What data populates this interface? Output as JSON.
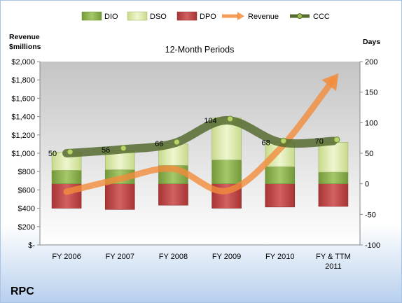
{
  "company": "RPC",
  "chart_data": {
    "type": "bar",
    "title": "12-Month Periods",
    "categories": [
      "FY 2006",
      "FY 2007",
      "FY 2008",
      "FY 2009",
      "FY 2010",
      "FY & TTM 2011"
    ],
    "y_left": {
      "label": [
        "Revenue",
        "$millions"
      ],
      "ticks": [
        "$-",
        "$200",
        "$400",
        "$600",
        "$800",
        "$1,000",
        "$1,200",
        "$1,400",
        "$1,600",
        "$1,800",
        "$2,000"
      ],
      "ylim": [
        0,
        2000
      ]
    },
    "y_right": {
      "label": "Days",
      "ticks": [
        "-100",
        "-50",
        "0",
        "50",
        "100",
        "150",
        "200"
      ],
      "ylim": [
        -100,
        200
      ]
    },
    "stacked_days": {
      "DPO": [
        -40,
        -42,
        -35,
        -40,
        -38,
        -37
      ],
      "DIO": [
        22,
        23,
        30,
        39,
        28,
        19
      ],
      "DSO": [
        30,
        31,
        35,
        69,
        40,
        49
      ]
    },
    "series": [
      {
        "name": "Revenue",
        "axis": "left",
        "values": [
          580,
          720,
          830,
          590,
          1050,
          1800
        ]
      },
      {
        "name": "CCC",
        "axis": "right",
        "values": [
          50,
          56,
          66,
          104,
          68,
          70
        ]
      }
    ],
    "data_labels": [
      "50",
      "56",
      "66",
      "104",
      "68",
      "70"
    ],
    "legend": [
      "DIO",
      "DSO",
      "DPO",
      "Revenue",
      "CCC"
    ],
    "legend_position": "top",
    "colors": {
      "DIO": "#8db24f",
      "DSO": "#d7e6a9",
      "DPO": "#bf4a4a",
      "Revenue": "#f28c3c",
      "CCC": "#556b2f"
    },
    "grid": false
  }
}
